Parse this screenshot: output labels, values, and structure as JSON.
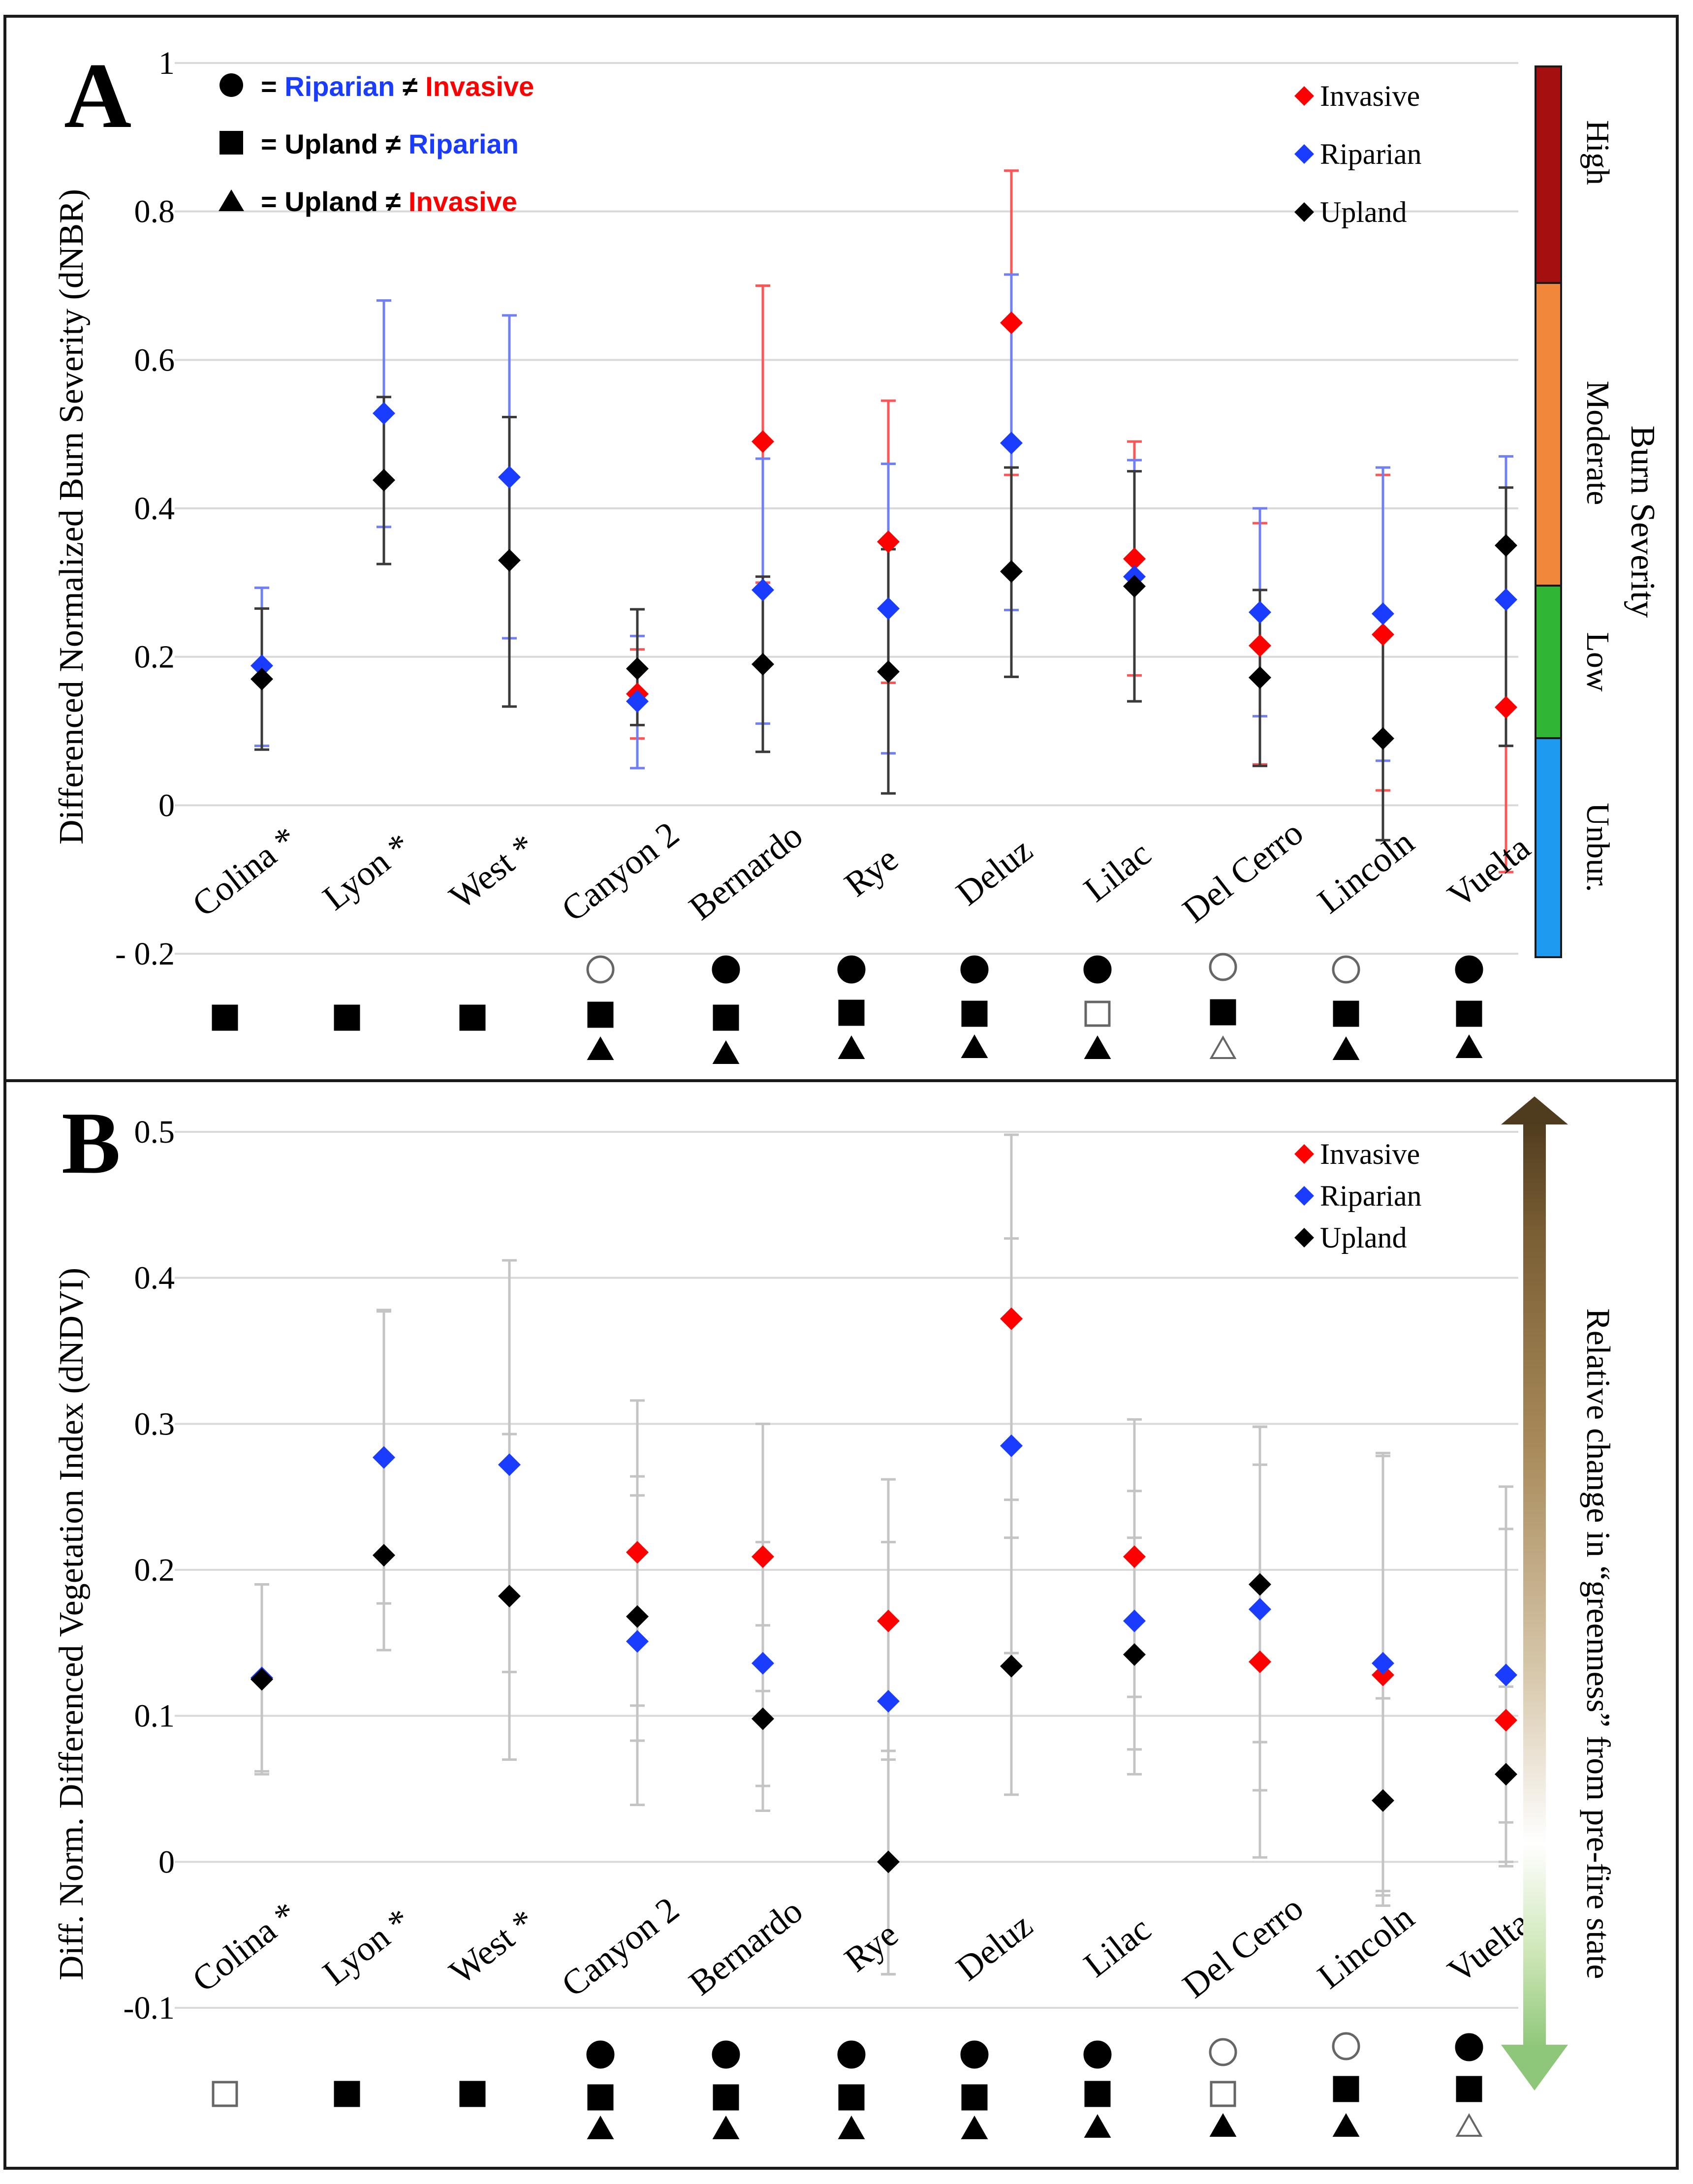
{
  "chart_data": [
    {
      "panel": "A",
      "type": "scatter",
      "ylabel": "Differenced Normalized Burn Severity (dNBR)",
      "ylim": [
        -0.2,
        1
      ],
      "yticks": [
        {
          "value": -0.2,
          "label": "- 0.2"
        },
        {
          "value": 0,
          "label": "0"
        },
        {
          "value": 0.2,
          "label": "0.2"
        },
        {
          "value": 0.4,
          "label": "0.4"
        },
        {
          "value": 0.6,
          "label": "0.6"
        },
        {
          "value": 0.8,
          "label": "0.8"
        },
        {
          "value": 1,
          "label": "1"
        }
      ],
      "grid": true,
      "categories": [
        "Colina*",
        "Lyon*",
        "West*",
        "Canyon 2",
        "Bernardo",
        "Rye",
        "Deluz",
        "Lilac",
        "Del Cerro",
        "Lincoln",
        "Vuelta"
      ],
      "series": [
        {
          "name": "Invasive",
          "color": "#ff0000",
          "values": [
            null,
            null,
            null,
            0.15,
            0.49,
            0.355,
            0.65,
            0.332,
            0.215,
            0.23,
            0.132
          ],
          "err_low": [
            null,
            null,
            null,
            0.09,
            0.3,
            0.165,
            0.445,
            0.175,
            0.055,
            0.02,
            -0.09
          ],
          "err_high": [
            null,
            null,
            null,
            0.21,
            0.7,
            0.545,
            0.855,
            0.49,
            0.38,
            0.445,
            0.355
          ]
        },
        {
          "name": "Riparian",
          "color": "#1a3cff",
          "values": [
            0.188,
            0.528,
            0.442,
            0.14,
            0.29,
            0.265,
            0.488,
            0.308,
            0.26,
            0.258,
            0.277
          ],
          "err_low": [
            0.08,
            0.375,
            0.225,
            0.05,
            0.11,
            0.07,
            0.263,
            0.14,
            0.12,
            0.06,
            0.08
          ],
          "err_high": [
            0.293,
            0.68,
            0.66,
            0.228,
            0.467,
            0.46,
            0.715,
            0.465,
            0.4,
            0.455,
            0.47
          ]
        },
        {
          "name": "Upland",
          "color": "#000000",
          "values": [
            0.17,
            0.438,
            0.33,
            0.184,
            0.19,
            0.18,
            0.315,
            0.295,
            0.172,
            0.09,
            0.35
          ],
          "err_low": [
            0.075,
            0.325,
            0.133,
            0.108,
            0.072,
            0.016,
            0.173,
            0.14,
            0.053,
            -0.047,
            0.08
          ],
          "err_high": [
            0.265,
            0.55,
            0.523,
            0.264,
            0.308,
            0.345,
            0.455,
            0.45,
            0.29,
            0.228,
            0.428
          ]
        }
      ],
      "legend": {
        "position": "top-right",
        "entries": [
          "Invasive",
          "Riparian",
          "Upland"
        ]
      },
      "significance": [
        {
          "circle": null,
          "square": "filled",
          "triangle": null
        },
        {
          "circle": null,
          "square": "filled",
          "triangle": null
        },
        {
          "circle": null,
          "square": "filled",
          "triangle": null
        },
        {
          "circle": "open",
          "square": "filled",
          "triangle": "filled"
        },
        {
          "circle": "filled",
          "square": "filled",
          "triangle": "filled"
        },
        {
          "circle": "filled",
          "square": "filled",
          "triangle": "filled"
        },
        {
          "circle": "filled",
          "square": "filled",
          "triangle": "filled"
        },
        {
          "circle": "filled",
          "square": "open",
          "triangle": "filled"
        },
        {
          "circle": "open",
          "square": "filled",
          "triangle": "open"
        },
        {
          "circle": "open",
          "square": "filled",
          "triangle": "filled"
        },
        {
          "circle": "filled",
          "square": "filled",
          "triangle": "filled"
        }
      ],
      "severity_bar": {
        "title": "Burn Severity",
        "classes": [
          {
            "label": "Unbur.",
            "color": "#1e9bf0"
          },
          {
            "label": "Low",
            "color": "#31b534"
          },
          {
            "label": "Moderate",
            "color": "#f0873a"
          },
          {
            "label": "High",
            "color": "#a50f0f"
          }
        ]
      }
    },
    {
      "panel": "B",
      "type": "scatter",
      "ylabel": "Diff. Norm. Differenced Vegetation Index (dNDVI)",
      "ylim": [
        -0.1,
        0.5
      ],
      "yticks": [
        {
          "value": -0.1,
          "label": "-0.1"
        },
        {
          "value": 0,
          "label": "0"
        },
        {
          "value": 0.1,
          "label": "0.1"
        },
        {
          "value": 0.2,
          "label": "0.2"
        },
        {
          "value": 0.3,
          "label": "0.3"
        },
        {
          "value": 0.4,
          "label": "0.4"
        },
        {
          "value": 0.5,
          "label": "0.5"
        }
      ],
      "grid": true,
      "categories": [
        "Colina*",
        "Lyon*",
        "West*",
        "Canyon 2",
        "Bernardo",
        "Rye",
        "Deluz",
        "Lilac",
        "Del Cerro",
        "Lincoln",
        "Vuelta"
      ],
      "series": [
        {
          "name": "Invasive",
          "color": "#ff0000",
          "values": [
            null,
            null,
            null,
            0.212,
            0.209,
            0.165,
            0.372,
            0.209,
            0.137,
            0.128,
            0.097
          ],
          "err_low": [
            null,
            null,
            null,
            0.107,
            0.117,
            0.07,
            0.248,
            0.113,
            0.003,
            -0.02,
            -0.003
          ],
          "err_high": [
            null,
            null,
            null,
            0.316,
            0.3,
            0.262,
            0.498,
            0.303,
            0.272,
            0.278,
            0.228
          ]
        },
        {
          "name": "Riparian",
          "color": "#1a3cff",
          "values": [
            0.126,
            0.277,
            0.272,
            0.151,
            0.136,
            0.11,
            0.285,
            0.165,
            0.173,
            0.136,
            0.128
          ],
          "err_low": [
            0.062,
            0.177,
            0.13,
            0.039,
            0.052,
            -0.077,
            0.143,
            0.077,
            0.049,
            -0.023,
            0.027
          ],
          "err_high": [
            0.19,
            0.378,
            0.412,
            0.264,
            0.219,
            0.219,
            0.427,
            0.254,
            0.298,
            0.28,
            0.257
          ]
        },
        {
          "name": "Upland",
          "color": "#000000",
          "values": [
            0.125,
            0.21,
            0.182,
            0.168,
            0.098,
            0.0,
            0.134,
            0.142,
            0.19,
            0.042,
            0.06
          ],
          "err_low": [
            0.06,
            0.145,
            0.07,
            0.083,
            0.035,
            -0.077,
            0.046,
            0.06,
            0.082,
            -0.03,
            0.0
          ],
          "err_high": [
            0.19,
            0.377,
            0.293,
            0.251,
            0.162,
            0.076,
            0.222,
            0.222,
            0.298,
            0.112,
            0.12
          ]
        }
      ],
      "legend": {
        "position": "top-right",
        "entries": [
          "Invasive",
          "Riparian",
          "Upland"
        ]
      },
      "significance": [
        {
          "circle": null,
          "square": "open",
          "triangle": null
        },
        {
          "circle": null,
          "square": "filled",
          "triangle": null
        },
        {
          "circle": null,
          "square": "filled",
          "triangle": null
        },
        {
          "circle": "filled",
          "square": "filled",
          "triangle": "filled"
        },
        {
          "circle": "filled",
          "square": "filled",
          "triangle": "filled"
        },
        {
          "circle": "filled",
          "square": "filled",
          "triangle": "filled"
        },
        {
          "circle": "filled",
          "square": "filled",
          "triangle": "filled"
        },
        {
          "circle": "filled",
          "square": "filled",
          "triangle": "filled"
        },
        {
          "circle": "open",
          "square": "open",
          "triangle": "filled"
        },
        {
          "circle": "open",
          "square": "filled",
          "triangle": "filled"
        },
        {
          "circle": "filled",
          "square": "filled",
          "triangle": "open"
        }
      ],
      "arrow_label": "Relative change in “greenness” from pre-fire state"
    }
  ],
  "significance_key": [
    {
      "symbol": "●",
      "prefix": "=",
      "first": "Riparian",
      "first_color": "#1a3cff",
      "neq": "≠",
      "second": "Invasive",
      "second_color": "#ff0000"
    },
    {
      "symbol": "■",
      "prefix": "=",
      "first": "Upland",
      "first_color": "#000000",
      "neq": "≠",
      "second": "Riparian",
      "second_color": "#1a3cff"
    },
    {
      "symbol": "▲",
      "prefix": "=",
      "first": "Upland",
      "first_color": "#000000",
      "neq": "≠",
      "second": "Invasive",
      "second_color": "#ff0000"
    }
  ]
}
